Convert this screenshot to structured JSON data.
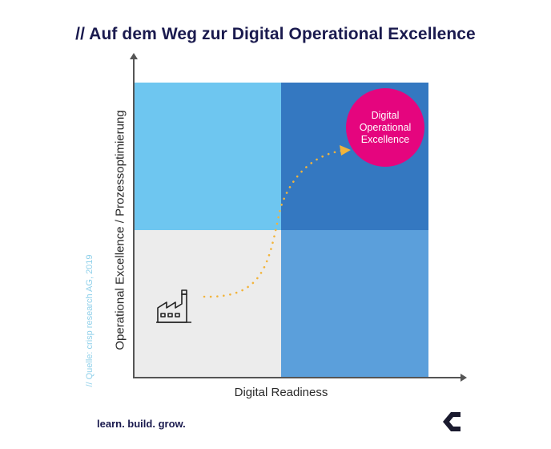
{
  "title": "// Auf dem Weg zur Digital Operational Excellence",
  "y_axis_label": "Operational Excellence / Prozessoptimierung",
  "x_axis_label": "Digital Readiness",
  "source": "// Quelle: crisp research AG, 2019",
  "target_lines": [
    "Digital",
    "Operational",
    "Excellence"
  ],
  "tagline": "learn. build. grow.",
  "icons": {
    "start": "factory-icon",
    "logo": "brand-logo-icon"
  },
  "colors": {
    "quadrant_top_left": "#6ec6f0",
    "quadrant_top_right": "#3478c1",
    "quadrant_bottom_left": "#ececec",
    "quadrant_bottom_right": "#5b9fdb",
    "target": "#e5057e",
    "path": "#f2b43c",
    "title": "#1a1a4e"
  }
}
